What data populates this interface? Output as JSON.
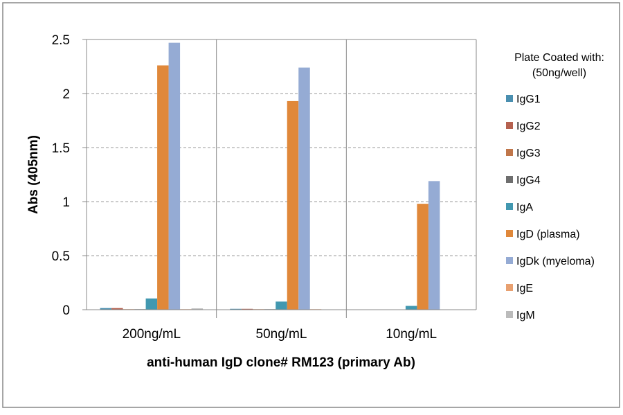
{
  "chart_data": {
    "type": "bar",
    "title": "",
    "xlabel": "anti-human IgD clone# RM123 (primary Ab)",
    "ylabel": "Abs (405nm)",
    "ylim": [
      0,
      2.5
    ],
    "yticks": [
      "0",
      "0.5",
      "1",
      "1.5",
      "2",
      "2.5"
    ],
    "grid": true,
    "legend_position": "right",
    "legend_title": [
      "Plate Coated with:",
      "(50ng/well)"
    ],
    "categories": [
      "200ng/mL",
      "50ng/mL",
      "10ng/mL"
    ],
    "series": [
      {
        "name": "IgG1",
        "color": "#4a8fb0",
        "values": [
          0.015,
          0.008,
          0
        ]
      },
      {
        "name": "IgG2",
        "color": "#b5614f",
        "values": [
          0.015,
          0.008,
          0
        ]
      },
      {
        "name": "IgG3",
        "color": "#c0764a",
        "values": [
          0.005,
          0.005,
          0
        ]
      },
      {
        "name": "IgG4",
        "color": "#6e6e6e",
        "values": [
          0.005,
          0.005,
          0
        ]
      },
      {
        "name": "IgA",
        "color": "#4298b0",
        "values": [
          0.104,
          0.075,
          0.035
        ]
      },
      {
        "name": "IgD (plasma)",
        "color": "#e0883a",
        "values": [
          2.26,
          1.93,
          0.98
        ]
      },
      {
        "name": "IgDk (myeloma)",
        "color": "#95abd4",
        "values": [
          2.47,
          2.24,
          1.19
        ]
      },
      {
        "name": "IgE",
        "color": "#e8a070",
        "values": [
          0.005,
          0.005,
          0
        ]
      },
      {
        "name": "IgM",
        "color": "#bbbbbb",
        "values": [
          0.012,
          0.003,
          0
        ]
      }
    ]
  }
}
